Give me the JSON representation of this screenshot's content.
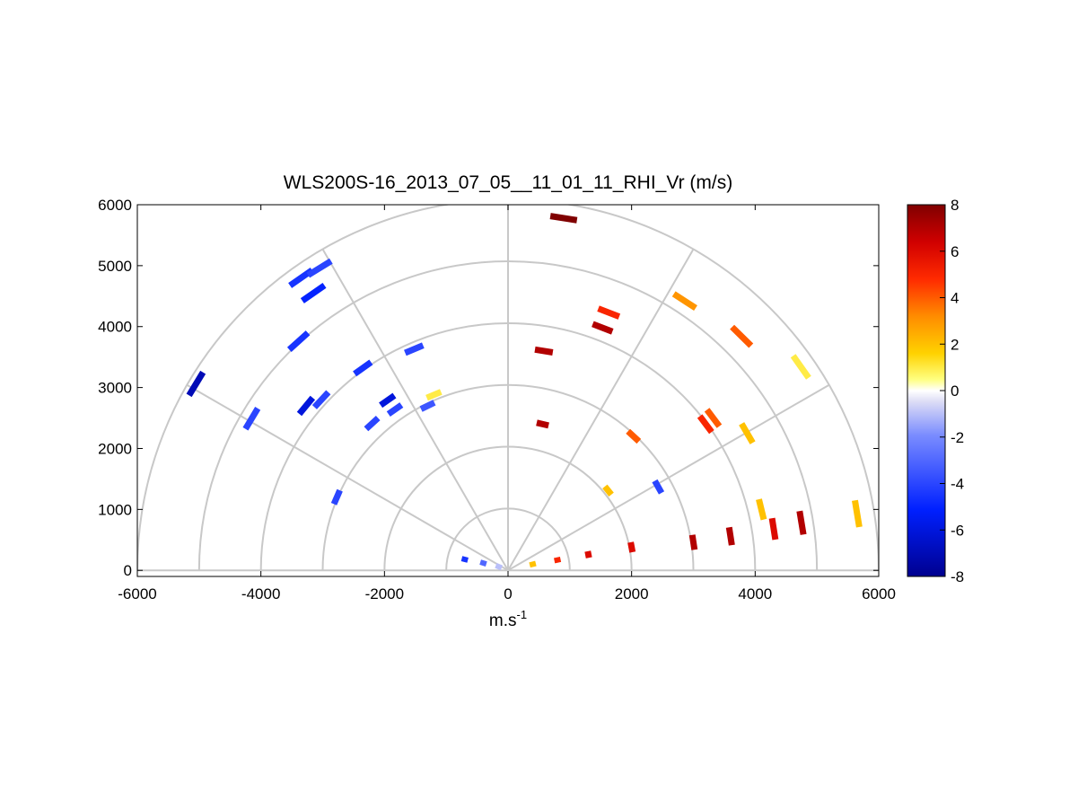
{
  "chart_data": {
    "type": "scatter",
    "title": "WLS200S-16_2013_07_05__11_01_11_RHI_Vr (m/s)",
    "xlabel_base": "m.s",
    "xlabel_exp": "-1",
    "ylabel": "",
    "xlim": [
      -6000,
      6000
    ],
    "ylim": [
      -100,
      6000
    ],
    "x_ticks": [
      "-6000",
      "-4000",
      "-2000",
      "0",
      "2000",
      "4000",
      "6000"
    ],
    "y_ticks": [
      "0",
      "1000",
      "2000",
      "3000",
      "4000",
      "5000",
      "6000"
    ],
    "polar_rings": [
      1000,
      2000,
      3000,
      4000,
      5000,
      6000
    ],
    "polar_spokes_deg": [
      0,
      30,
      60,
      90,
      120,
      150,
      180
    ],
    "grid": true,
    "colorbar": {
      "min": -8,
      "max": 8,
      "ticks": [
        "-8",
        "-6",
        "-4",
        "-2",
        "0",
        "2",
        "4",
        "6",
        "8"
      ],
      "colormap": "blue-white-red"
    },
    "series": [
      {
        "points": [
          {
            "x": 900,
            "y": 5780,
            "v": 8
          },
          {
            "x": -3350,
            "y": 4800,
            "v": -4.5
          },
          {
            "x": -3050,
            "y": 4960,
            "v": -4
          },
          {
            "x": -3150,
            "y": 4550,
            "v": -5
          },
          {
            "x": -5050,
            "y": 3060,
            "v": -7
          },
          {
            "x": -3390,
            "y": 3760,
            "v": -4.5
          },
          {
            "x": -1520,
            "y": 3630,
            "v": -4
          },
          {
            "x": -2350,
            "y": 3320,
            "v": -4.5
          },
          {
            "x": -4150,
            "y": 2490,
            "v": -4
          },
          {
            "x": -3270,
            "y": 2700,
            "v": -6
          },
          {
            "x": -3020,
            "y": 2800,
            "v": -4
          },
          {
            "x": -1950,
            "y": 2790,
            "v": -6
          },
          {
            "x": -1830,
            "y": 2640,
            "v": -4
          },
          {
            "x": -1300,
            "y": 2700,
            "v": -3.5
          },
          {
            "x": -1200,
            "y": 2880,
            "v": 1
          },
          {
            "x": -2200,
            "y": 2410,
            "v": -4
          },
          {
            "x": -2770,
            "y": 1200,
            "v": -4
          },
          {
            "x": 1630,
            "y": 4230,
            "v": 5
          },
          {
            "x": 1530,
            "y": 3980,
            "v": 7
          },
          {
            "x": 580,
            "y": 3600,
            "v": 7
          },
          {
            "x": 560,
            "y": 2400,
            "v": 7
          },
          {
            "x": 2860,
            "y": 4420,
            "v": 3
          },
          {
            "x": 3780,
            "y": 3840,
            "v": 4
          },
          {
            "x": 4740,
            "y": 3340,
            "v": 1
          },
          {
            "x": 2030,
            "y": 2200,
            "v": 4
          },
          {
            "x": 3320,
            "y": 2500,
            "v": 4
          },
          {
            "x": 3200,
            "y": 2400,
            "v": 5
          },
          {
            "x": 3870,
            "y": 2250,
            "v": 2
          },
          {
            "x": 2430,
            "y": 1370,
            "v": -4
          },
          {
            "x": 1620,
            "y": 1310,
            "v": 2
          },
          {
            "x": 4100,
            "y": 1000,
            "v": 2
          },
          {
            "x": 5650,
            "y": 930,
            "v": 2
          },
          {
            "x": 3000,
            "y": 460,
            "v": 7
          },
          {
            "x": 3600,
            "y": 560,
            "v": 7
          },
          {
            "x": 4300,
            "y": 680,
            "v": 6
          },
          {
            "x": 4750,
            "y": 780,
            "v": 7
          },
          {
            "x": 2000,
            "y": 380,
            "v": 6
          },
          {
            "x": 1300,
            "y": 260,
            "v": 6
          },
          {
            "x": 800,
            "y": 170,
            "v": 5
          },
          {
            "x": 400,
            "y": 100,
            "v": 2
          },
          {
            "x": -700,
            "y": 180,
            "v": -4.5
          },
          {
            "x": -400,
            "y": 120,
            "v": -3
          },
          {
            "x": -150,
            "y": 60,
            "v": -1
          }
        ]
      }
    ]
  }
}
